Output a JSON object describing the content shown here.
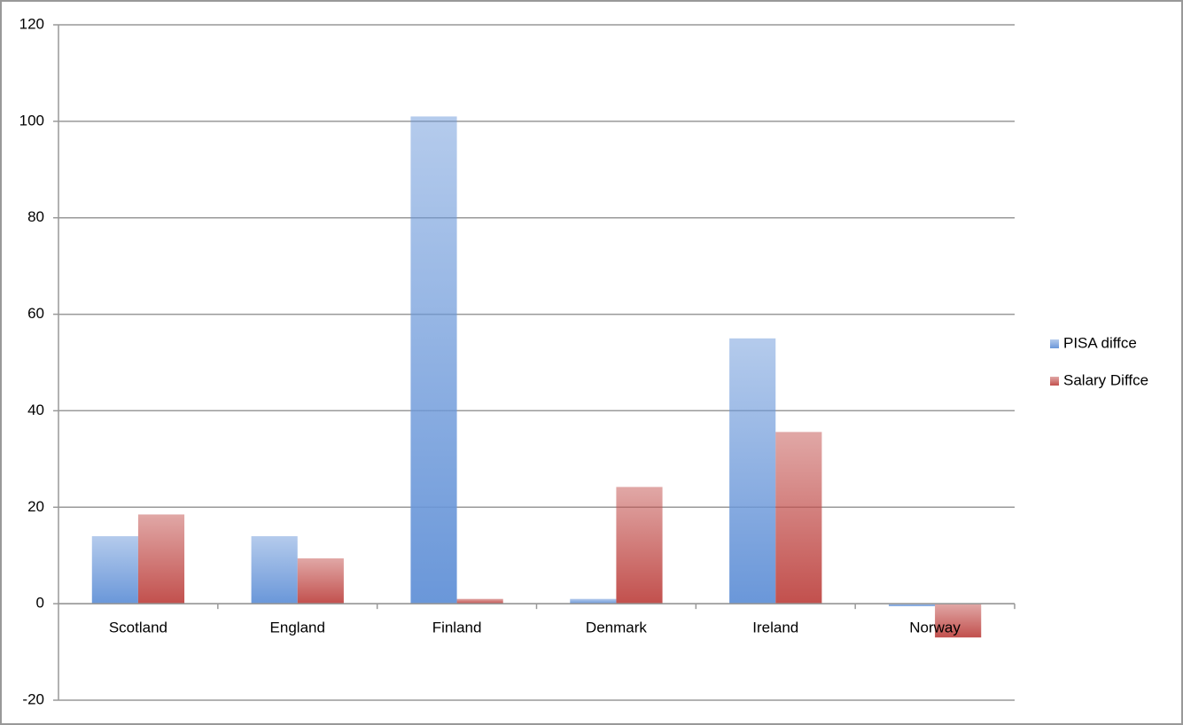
{
  "chart_data": {
    "type": "bar",
    "categories": [
      "Scotland",
      "England",
      "Finland",
      "Denmark",
      "Ireland",
      "Norway"
    ],
    "series": [
      {
        "name": "PISA diffce",
        "color": "#6a97d9",
        "values": [
          14,
          14,
          101,
          1,
          55,
          -0.5
        ]
      },
      {
        "name": "Salary Diffce",
        "color": "#c2504d",
        "values": [
          18.5,
          9.4,
          1,
          24.2,
          35.6,
          -7
        ]
      }
    ],
    "ylim": [
      -20,
      120
    ],
    "yticks": [
      -20,
      0,
      20,
      40,
      60,
      80,
      100,
      120
    ],
    "grid": true,
    "legend": "right"
  }
}
